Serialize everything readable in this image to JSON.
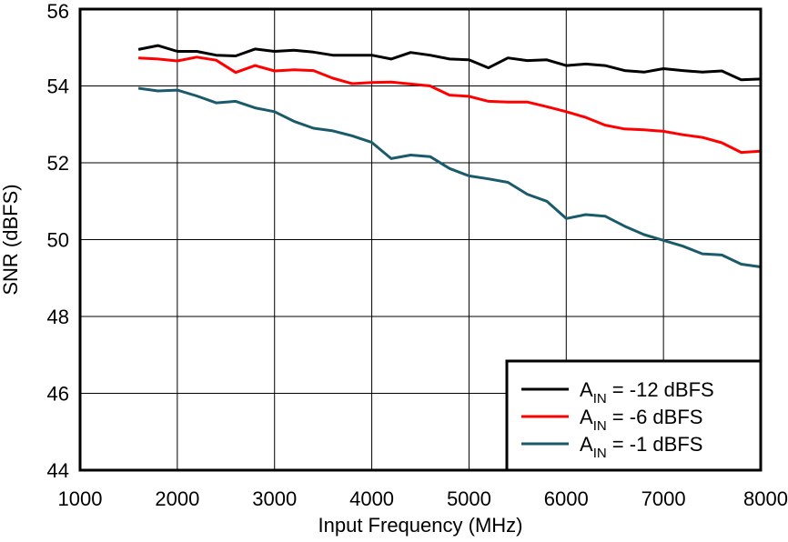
{
  "chart_data": {
    "type": "line",
    "xlabel": "Input Frequency (MHz)",
    "ylabel": "SNR (dBFS)",
    "xlim": [
      1000,
      8000
    ],
    "ylim": [
      44,
      56
    ],
    "x_ticks": [
      "1000",
      "2000",
      "3000",
      "4000",
      "5000",
      "6000",
      "7000",
      "8000"
    ],
    "y_ticks": [
      "44",
      "46",
      "48",
      "50",
      "52",
      "54",
      "56"
    ],
    "grid": true,
    "legend_position": "bottom-right",
    "x": [
      1600,
      1800,
      2000,
      2200,
      2400,
      2600,
      2800,
      3000,
      3200,
      3400,
      3600,
      3800,
      4000,
      4200,
      4400,
      4600,
      4800,
      5000,
      5200,
      5400,
      5600,
      5800,
      6000,
      6200,
      6400,
      6600,
      6800,
      7000,
      7200,
      7400,
      7600,
      7800,
      8000
    ],
    "series": [
      {
        "legend_main": "A",
        "legend_sub": "IN",
        "legend_rest": " = -12 dBFS",
        "color": "#000000",
        "values": [
          54.95,
          55.05,
          54.9,
          54.9,
          54.8,
          54.78,
          54.96,
          54.9,
          54.93,
          54.88,
          54.8,
          54.8,
          54.8,
          54.7,
          54.87,
          54.8,
          54.7,
          54.68,
          54.47,
          54.73,
          54.66,
          54.68,
          54.53,
          54.57,
          54.53,
          54.4,
          54.36,
          54.45,
          54.4,
          54.36,
          54.39,
          54.16,
          54.18
        ]
      },
      {
        "legend_main": "A",
        "legend_sub": "IN",
        "legend_rest": " = -6 dBFS",
        "color": "#ff0000",
        "values": [
          54.73,
          54.7,
          54.65,
          54.75,
          54.67,
          54.35,
          54.53,
          54.39,
          54.42,
          54.4,
          54.2,
          54.06,
          54.09,
          54.1,
          54.05,
          54.0,
          53.76,
          53.73,
          53.6,
          53.58,
          53.58,
          53.46,
          53.33,
          53.18,
          52.98,
          52.88,
          52.86,
          52.82,
          52.73,
          52.66,
          52.52,
          52.27,
          52.3
        ]
      },
      {
        "legend_main": "A",
        "legend_sub": "IN",
        "legend_rest": " = -1 dBFS",
        "color": "#1b5a6b",
        "values": [
          53.94,
          53.87,
          53.89,
          53.74,
          53.56,
          53.6,
          53.43,
          53.33,
          53.08,
          52.9,
          52.83,
          52.7,
          52.53,
          52.11,
          52.2,
          52.16,
          51.85,
          51.66,
          51.58,
          51.49,
          51.18,
          51.0,
          50.55,
          50.65,
          50.61,
          50.35,
          50.13,
          49.98,
          49.83,
          49.63,
          49.6,
          49.36,
          49.29
        ]
      }
    ]
  }
}
